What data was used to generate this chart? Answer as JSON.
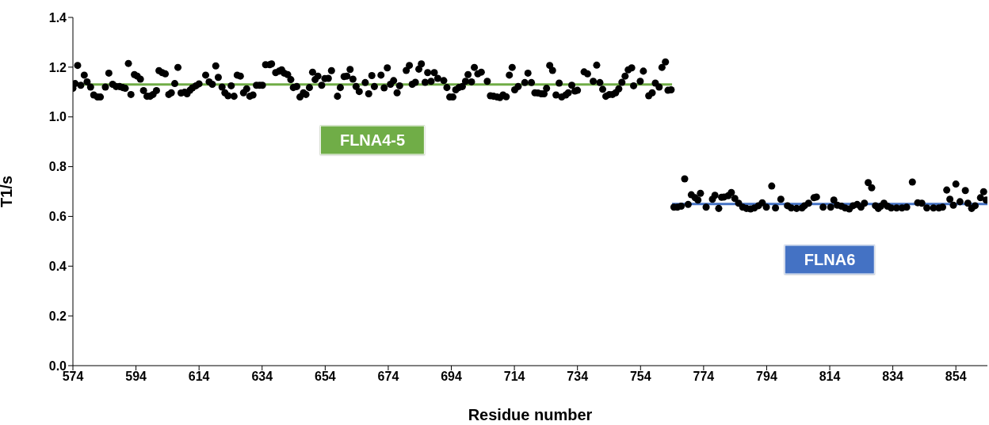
{
  "chart_data": {
    "type": "scatter",
    "xlabel": "Residue number",
    "ylabel": "T1/s",
    "xlim": [
      574,
      864
    ],
    "xticks": [
      574,
      594,
      614,
      634,
      654,
      674,
      694,
      714,
      734,
      754,
      774,
      794,
      814,
      834,
      854
    ],
    "ylim": [
      0,
      1.4
    ],
    "yticks": [
      {
        "value": 0,
        "label": "0.0"
      },
      0.2,
      0.4,
      0.6,
      0.8,
      {
        "value": 1,
        "label": "1.0"
      },
      1.2,
      1.4
    ],
    "grid": false,
    "legend": false,
    "marker": "circle",
    "series": [
      {
        "color": "#000000",
        "x": [
          574,
          574.7,
          575.5,
          576.5,
          577.6,
          578.5,
          579.6,
          580.6,
          581.8,
          582.7,
          584.3,
          585.4,
          586.6,
          587.7,
          588.8,
          589.8,
          590.6,
          591.6,
          592.4,
          593.5,
          594.4,
          595.4,
          596.4,
          597.5,
          598.5,
          599.4,
          600.5,
          601.3,
          602.3,
          603.3,
          604.4,
          605.2,
          606.3,
          607.3,
          608.3,
          609.4,
          610.2,
          611.1,
          611.9,
          613.0,
          614.0,
          616.1,
          617.2,
          618.2,
          619.3,
          620.1,
          621.3,
          622.2,
          623.2,
          624.2,
          625.1,
          626.1,
          627.1,
          628.1,
          629.1,
          630.1,
          631.1,
          632.2,
          633.2,
          634.1,
          635.1,
          636.4,
          637.0,
          638.3,
          639.4,
          640.2,
          641.0,
          642.1,
          643.1,
          643.9,
          645.0,
          646.0,
          647.1,
          647.9,
          649.0,
          650.0,
          650.8,
          651.7,
          652.9,
          653.9,
          655.0,
          656.0,
          657.9,
          658.8,
          660.0,
          660.9,
          661.9,
          662.8,
          663.8,
          664.8,
          666.7,
          667.8,
          668.8,
          669.6,
          671.7,
          672.7,
          673.7,
          674.7,
          675.7,
          676.8,
          677.6,
          679.7,
          680.7,
          681.6,
          682.6,
          683.7,
          684.5,
          685.7,
          686.5,
          687.6,
          688.6,
          689.7,
          691.6,
          692.6,
          693.5,
          694.5,
          695.4,
          696.4,
          697.5,
          698.5,
          699.3,
          700.4,
          701.3,
          702.4,
          703.5,
          705.4,
          706.4,
          707.4,
          708.5,
          709.4,
          710.4,
          711.4,
          712.4,
          713.3,
          714.1,
          715.2,
          717.3,
          718.3,
          719.4,
          720.5,
          721.5,
          722.5,
          723.4,
          724.2,
          725.2,
          726.1,
          727.2,
          728.2,
          729.0,
          730.3,
          731.1,
          732.2,
          733.2,
          734.0,
          736.1,
          737.2,
          739.0,
          740.1,
          741.1,
          742.0,
          743.0,
          744.1,
          745.1,
          746.1,
          747.1,
          748.1,
          749.1,
          750.1,
          751.2,
          751.8,
          753.9,
          754.9,
          756.6,
          757.7,
          758.7,
          759.9,
          760.8,
          761.9,
          762.7,
          763.7
        ],
        "values": [
          1.115,
          1.134,
          1.207,
          1.127,
          1.168,
          1.141,
          1.12,
          1.088,
          1.08,
          1.08,
          1.12,
          1.176,
          1.131,
          1.122,
          1.122,
          1.118,
          1.115,
          1.215,
          1.09,
          1.17,
          1.164,
          1.152,
          1.106,
          1.083,
          1.083,
          1.09,
          1.106,
          1.186,
          1.178,
          1.173,
          1.09,
          1.097,
          1.134,
          1.199,
          1.096,
          1.099,
          1.093,
          1.107,
          1.117,
          1.125,
          1.133,
          1.168,
          1.141,
          1.131,
          1.205,
          1.159,
          1.12,
          1.097,
          1.085,
          1.125,
          1.083,
          1.168,
          1.164,
          1.097,
          1.113,
          1.083,
          1.088,
          1.127,
          1.127,
          1.127,
          1.21,
          1.21,
          1.213,
          1.178,
          1.184,
          1.189,
          1.176,
          1.17,
          1.15,
          1.118,
          1.122,
          1.08,
          1.097,
          1.09,
          1.118,
          1.18,
          1.15,
          1.164,
          1.127,
          1.154,
          1.155,
          1.186,
          1.083,
          1.118,
          1.162,
          1.164,
          1.191,
          1.152,
          1.122,
          1.102,
          1.138,
          1.093,
          1.166,
          1.122,
          1.168,
          1.117,
          1.197,
          1.131,
          1.146,
          1.097,
          1.125,
          1.187,
          1.207,
          1.131,
          1.139,
          1.192,
          1.213,
          1.139,
          1.178,
          1.143,
          1.178,
          1.155,
          1.146,
          1.118,
          1.08,
          1.08,
          1.109,
          1.118,
          1.122,
          1.143,
          1.17,
          1.141,
          1.199,
          1.173,
          1.18,
          1.143,
          1.085,
          1.083,
          1.08,
          1.078,
          1.088,
          1.081,
          1.168,
          1.199,
          1.109,
          1.122,
          1.138,
          1.176,
          1.138,
          1.097,
          1.096,
          1.093,
          1.093,
          1.115,
          1.207,
          1.187,
          1.088,
          1.136,
          1.08,
          1.088,
          1.097,
          1.127,
          1.104,
          1.107,
          1.181,
          1.173,
          1.143,
          1.208,
          1.138,
          1.111,
          1.083,
          1.09,
          1.09,
          1.097,
          1.113,
          1.139,
          1.164,
          1.189,
          1.197,
          1.125,
          1.143,
          1.184,
          1.085,
          1.097,
          1.136,
          1.12,
          1.199,
          1.221,
          1.107,
          1.109
        ]
      },
      {
        "type": "line",
        "name": "FLNA4-5",
        "marker": "none",
        "color": "#70ad47",
        "x": [
          574,
          764
        ],
        "values": [
          1.13,
          1.13
        ]
      },
      {
        "color": "#000000",
        "x": [
          764.6,
          765.7,
          766.9,
          768.0,
          769.1,
          770.1,
          771.3,
          772.2,
          773.0,
          774.8,
          776.8,
          777.6,
          778.8,
          779.7,
          780.5,
          781.8,
          782.8,
          783.9,
          785.1,
          786.4,
          787.6,
          788.9,
          790.1,
          791.4,
          792.6,
          793.9,
          795.6,
          796.8,
          798.5,
          800.6,
          801.8,
          803.5,
          805.2,
          806.0,
          807.3,
          809.0,
          809.8,
          811.9,
          814.3,
          815.3,
          816.4,
          817.7,
          818.9,
          820.2,
          821.4,
          822.7,
          823.9,
          825.0,
          826.2,
          827.3,
          828.5,
          829.4,
          830.2,
          831.2,
          832.3,
          833.5,
          835.2,
          836.9,
          838.4,
          840.2,
          841.9,
          843.2,
          844.8,
          846.9,
          848.6,
          849.8,
          851.1,
          852.1,
          853.2,
          854.0,
          855.3,
          857.0,
          857.8,
          859.0,
          860.1,
          861.8,
          862.8,
          863.6
        ],
        "values": [
          0.637,
          0.637,
          0.641,
          0.751,
          0.648,
          0.687,
          0.675,
          0.666,
          0.693,
          0.637,
          0.669,
          0.685,
          0.632,
          0.677,
          0.678,
          0.683,
          0.696,
          0.672,
          0.653,
          0.637,
          0.632,
          0.63,
          0.634,
          0.643,
          0.655,
          0.637,
          0.722,
          0.634,
          0.669,
          0.643,
          0.634,
          0.632,
          0.634,
          0.643,
          0.653,
          0.675,
          0.678,
          0.637,
          0.637,
          0.666,
          0.645,
          0.641,
          0.634,
          0.63,
          0.643,
          0.648,
          0.637,
          0.653,
          0.736,
          0.715,
          0.643,
          0.632,
          0.641,
          0.653,
          0.641,
          0.634,
          0.634,
          0.634,
          0.637,
          0.738,
          0.655,
          0.653,
          0.634,
          0.634,
          0.634,
          0.637,
          0.706,
          0.669,
          0.645,
          0.73,
          0.659,
          0.704,
          0.653,
          0.632,
          0.643,
          0.675,
          0.699,
          0.666
        ]
      },
      {
        "type": "line",
        "name": "FLNA6",
        "marker": "none",
        "color": "#4472c4",
        "x": [
          764,
          864
        ],
        "values": [
          0.65,
          0.65
        ]
      }
    ]
  }
}
